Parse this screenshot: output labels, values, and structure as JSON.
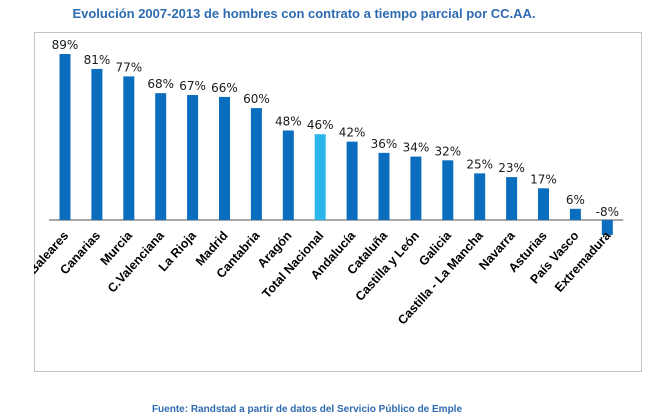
{
  "title": "Evolución 2007-2013 de hombres con contrato a tiempo parcial por CC.AA.",
  "source": "Fuente: Randstad a partir de datos del Servicio Público de Emple",
  "colors": {
    "bar": "#0A6DBE",
    "highlight": "#2BB5EA",
    "title": "#2E6BB0"
  },
  "chart_data": {
    "type": "bar",
    "categories": [
      "Baleares",
      "Canarias",
      "Murcia",
      "C.Valenciana",
      "La Rioja",
      "Madrid",
      "Cantabria",
      "Aragón",
      "Total Nacional",
      "Andalucía",
      "Cataluña",
      "Castilla y León",
      "Galicia",
      "Castilla - La Mancha",
      "Navarra",
      "Asturias",
      "País Vasco",
      "Extremadura"
    ],
    "values": [
      89,
      81,
      77,
      68,
      67,
      66,
      60,
      48,
      46,
      42,
      36,
      34,
      32,
      25,
      23,
      17,
      6,
      -8
    ],
    "data_labels": [
      "89%",
      "81%",
      "77%",
      "68%",
      "67%",
      "66%",
      "60%",
      "48%",
      "46%",
      "42%",
      "36%",
      "34%",
      "32%",
      "25%",
      "23%",
      "17%",
      "6%",
      "-8%"
    ],
    "highlight_category": "Total Nacional",
    "ylim": [
      -10,
      90
    ],
    "grid": false,
    "legend": "none"
  }
}
